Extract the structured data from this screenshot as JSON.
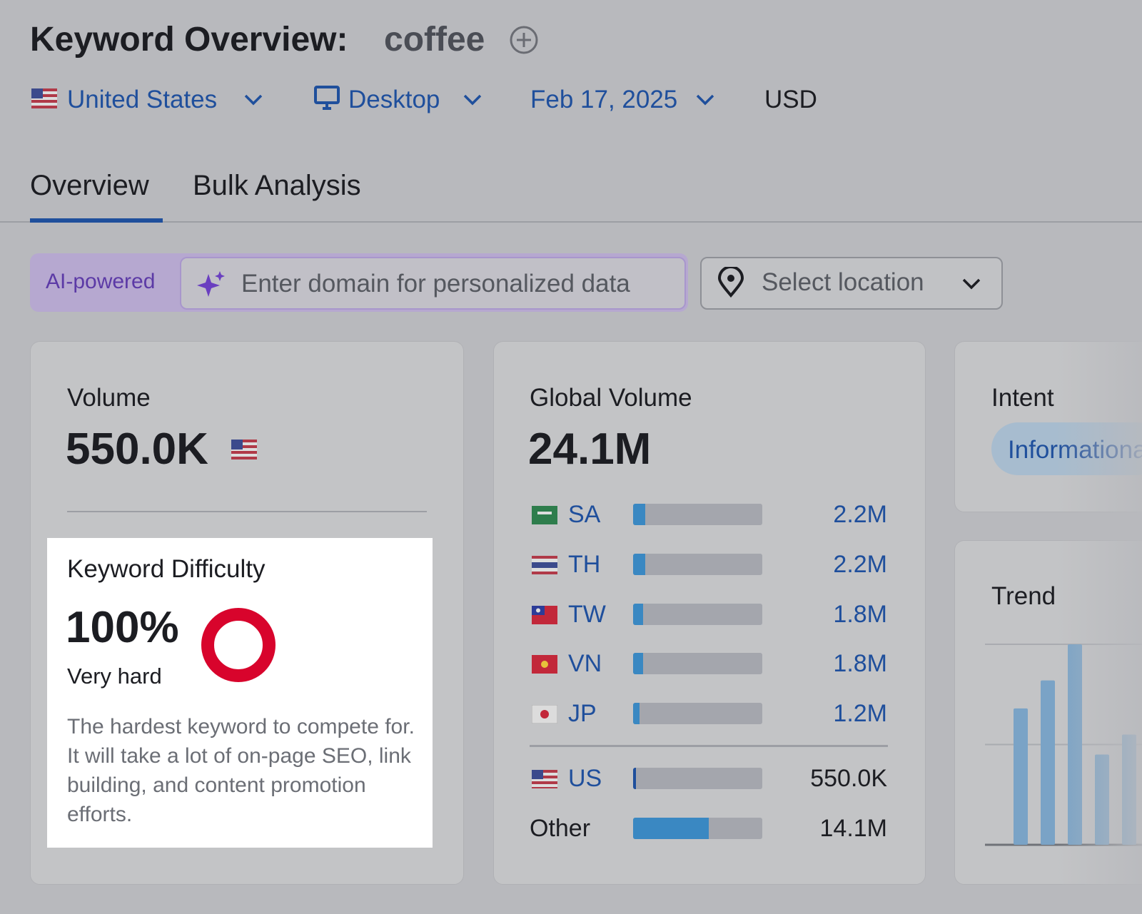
{
  "header": {
    "title": "Keyword Overview:",
    "keyword": "coffee",
    "filters": [
      "United States",
      "Desktop",
      "Feb 17, 2025",
      "USD"
    ]
  },
  "tabs": [
    "Overview",
    "Bulk Analysis"
  ],
  "search": {
    "badge": "AI-powered",
    "placeholder": "Enter domain for personalized data",
    "location": "Select location"
  },
  "volume": {
    "title": "Volume",
    "value": 550000,
    "label": "550.0K"
  },
  "keyword_difficulty": {
    "title": "Keyword Difficulty",
    "value": 100,
    "label": "100%",
    "level": "Very hard",
    "description": "The hardest keyword to compete for. It will take a lot of on-page SEO, link building, and content promotion efforts."
  },
  "global_volume": {
    "title": "Global Volume",
    "value": 24100000,
    "label": "24.1M",
    "countries": [
      {
        "name": "SA",
        "value": 2200000,
        "label": "2.2M"
      },
      {
        "name": "TH",
        "value": 2200000,
        "label": "2.2M"
      },
      {
        "name": "TW",
        "value": 1800000,
        "label": "1.8M"
      },
      {
        "name": "VN",
        "value": 1800000,
        "label": "1.8M"
      },
      {
        "name": "JP",
        "value": 1200000,
        "label": "1.2M"
      },
      {
        "name": "US",
        "value": 550000,
        "label": "550.0K"
      },
      {
        "name": "Other",
        "value": 14100000,
        "label": "14.1M"
      }
    ]
  },
  "intent": {
    "title": "Intent",
    "values": [
      "Informational"
    ]
  },
  "trend": {
    "title": "Trend",
    "values": [
      0.68,
      0.82,
      1,
      0.45,
      0.55
    ],
    "ylim": [
      0,
      1
    ]
  }
}
